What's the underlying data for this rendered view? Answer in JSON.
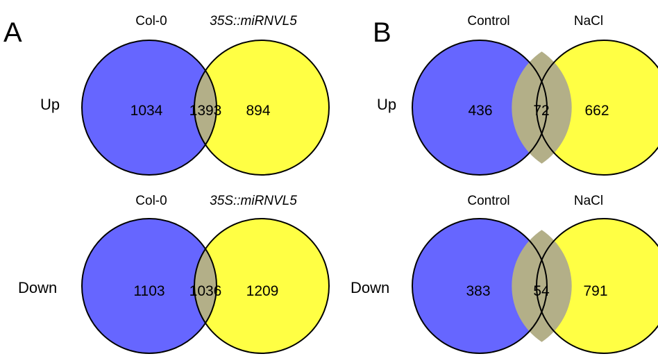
{
  "panels": [
    {
      "letter": "A",
      "set_labels": [
        "Col-0",
        "35S::miRNVL5"
      ],
      "rows": [
        {
          "label": "Up",
          "left_only": "1034",
          "overlap": "1393",
          "right_only": "894"
        },
        {
          "label": "Down",
          "left_only": "1103",
          "overlap": "1036",
          "right_only": "1209"
        }
      ]
    },
    {
      "letter": "B",
      "set_labels": [
        "Control",
        "NaCl"
      ],
      "rows": [
        {
          "label": "Up",
          "left_only": "436",
          "overlap": "72",
          "right_only": "662"
        },
        {
          "label": "Down",
          "left_only": "383",
          "overlap": "54",
          "right_only": "791"
        }
      ]
    }
  ],
  "colors": {
    "left_set": "#6666ff",
    "right_set": "#ffff44",
    "overlap": "#b3af88",
    "outline": "#000000"
  }
}
